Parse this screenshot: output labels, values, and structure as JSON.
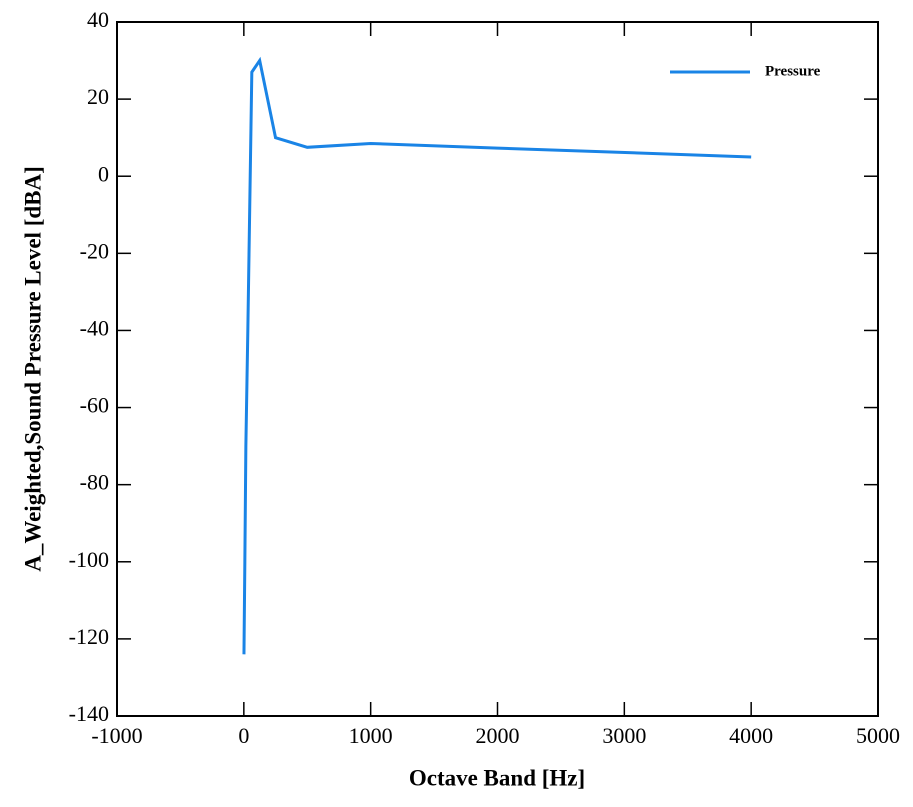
{
  "chart_data": {
    "type": "line",
    "xlabel": "Octave Band [Hz]",
    "ylabel": "A_Weighted,Sound Pressure Level [dBA]",
    "series": [
      {
        "name": "Pressure",
        "color": "#1a84e6",
        "x": [
          1,
          8,
          16,
          31.5,
          63,
          125,
          250,
          500,
          1000,
          2000,
          4000
        ],
        "values": [
          -124,
          -100,
          -70,
          -40,
          27,
          30,
          10,
          7.5,
          8.5,
          7.3,
          5
        ]
      }
    ],
    "xlim": [
      -1000,
      5000
    ],
    "xticks": [
      -1000,
      0,
      1000,
      2000,
      3000,
      4000,
      5000
    ],
    "ylim": [
      -140,
      40
    ],
    "yticks": [
      -140,
      -120,
      -100,
      -80,
      -60,
      -40,
      -20,
      0,
      20,
      40
    ],
    "legend": "upper right"
  }
}
